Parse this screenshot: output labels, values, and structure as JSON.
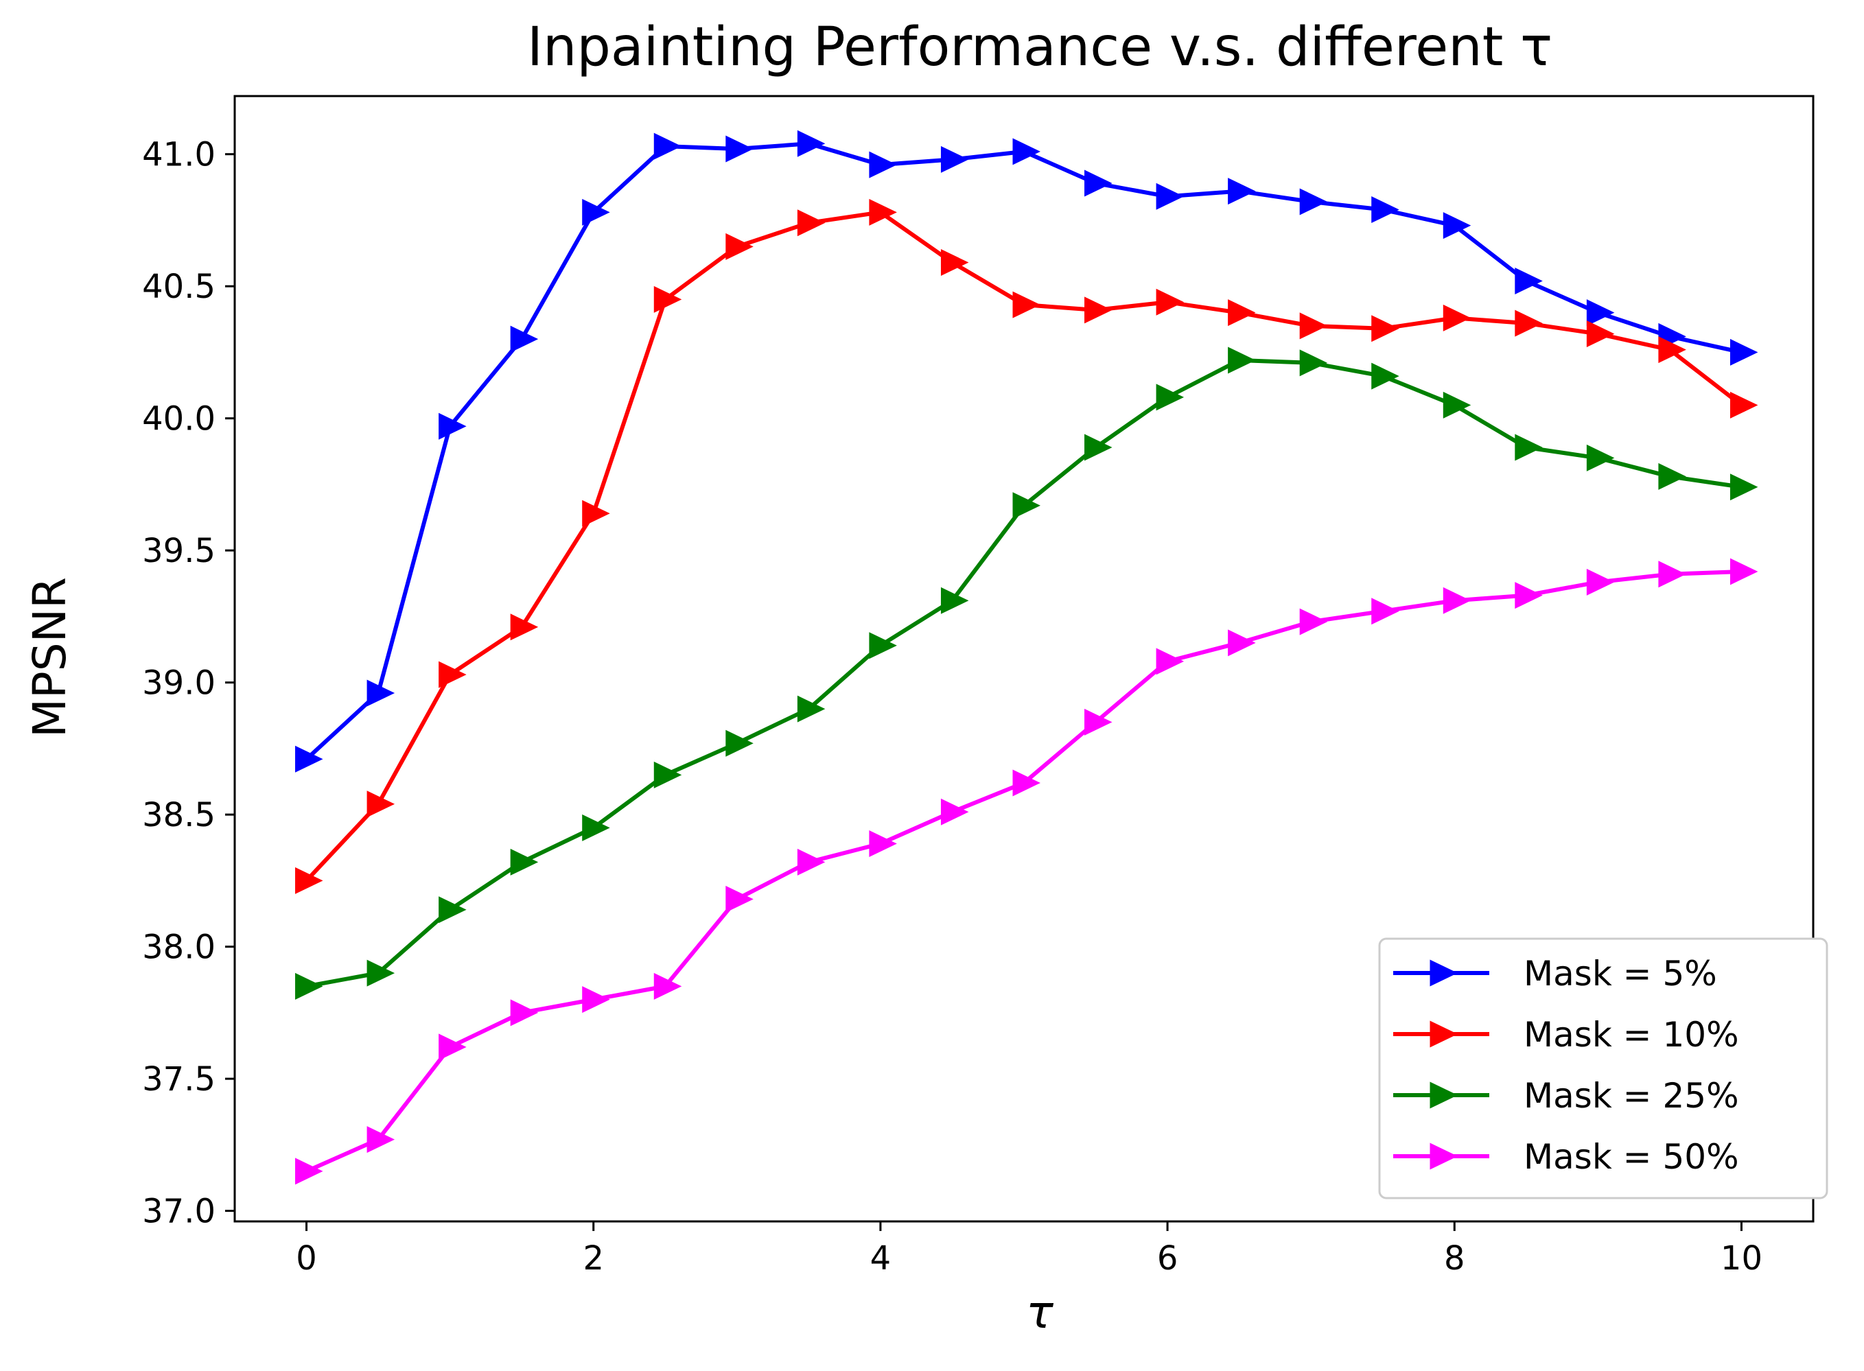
{
  "chart_data": {
    "type": "line",
    "title": "Inpainting Performance v.s. different τ",
    "xlabel": "τ",
    "ylabel": "MPSNR",
    "xlim": [
      -0.5,
      10.5
    ],
    "ylim": [
      36.96,
      41.22
    ],
    "xticks": [
      0,
      2,
      4,
      6,
      8,
      10
    ],
    "xtick_labels": [
      "0",
      "2",
      "4",
      "6",
      "8",
      "10"
    ],
    "yticks": [
      37.0,
      37.5,
      38.0,
      38.5,
      39.0,
      39.5,
      40.0,
      40.5,
      41.0
    ],
    "ytick_labels": [
      "37.0",
      "37.5",
      "38.0",
      "38.5",
      "39.0",
      "39.5",
      "40.0",
      "40.5",
      "41.0"
    ],
    "grid": false,
    "legend_position": "lower-right",
    "marker": "triangle-right",
    "x": [
      0,
      0.5,
      1,
      1.5,
      2,
      2.5,
      3,
      3.5,
      4,
      4.5,
      5,
      5.5,
      6,
      6.5,
      7,
      7.5,
      8,
      8.5,
      9,
      9.5,
      10
    ],
    "series": [
      {
        "name": "Mask = 5%",
        "color": "#0000ff",
        "values": [
          38.71,
          38.96,
          39.97,
          40.3,
          40.78,
          41.03,
          41.02,
          41.04,
          40.96,
          40.98,
          41.01,
          40.89,
          40.84,
          40.86,
          40.82,
          40.79,
          40.73,
          40.52,
          40.4,
          40.31,
          40.25
        ]
      },
      {
        "name": "Mask = 10%",
        "color": "#ff0000",
        "values": [
          38.25,
          38.54,
          39.03,
          39.21,
          39.64,
          40.45,
          40.65,
          40.74,
          40.78,
          40.59,
          40.43,
          40.41,
          40.44,
          40.4,
          40.35,
          40.34,
          40.38,
          40.36,
          40.32,
          40.26,
          40.05
        ]
      },
      {
        "name": "Mask = 25%",
        "color": "#008000",
        "values": [
          37.85,
          37.9,
          38.14,
          38.32,
          38.45,
          38.65,
          38.77,
          38.9,
          39.14,
          39.31,
          39.67,
          39.89,
          40.08,
          40.22,
          40.21,
          40.16,
          40.05,
          39.89,
          39.85,
          39.78,
          39.74
        ]
      },
      {
        "name": "Mask = 50%",
        "color": "#ff00ff",
        "values": [
          37.15,
          37.27,
          37.62,
          37.75,
          37.8,
          37.85,
          38.18,
          38.32,
          38.39,
          38.51,
          38.62,
          38.85,
          39.08,
          39.15,
          39.23,
          39.27,
          39.31,
          39.33,
          39.38,
          39.41,
          39.42
        ]
      }
    ]
  }
}
